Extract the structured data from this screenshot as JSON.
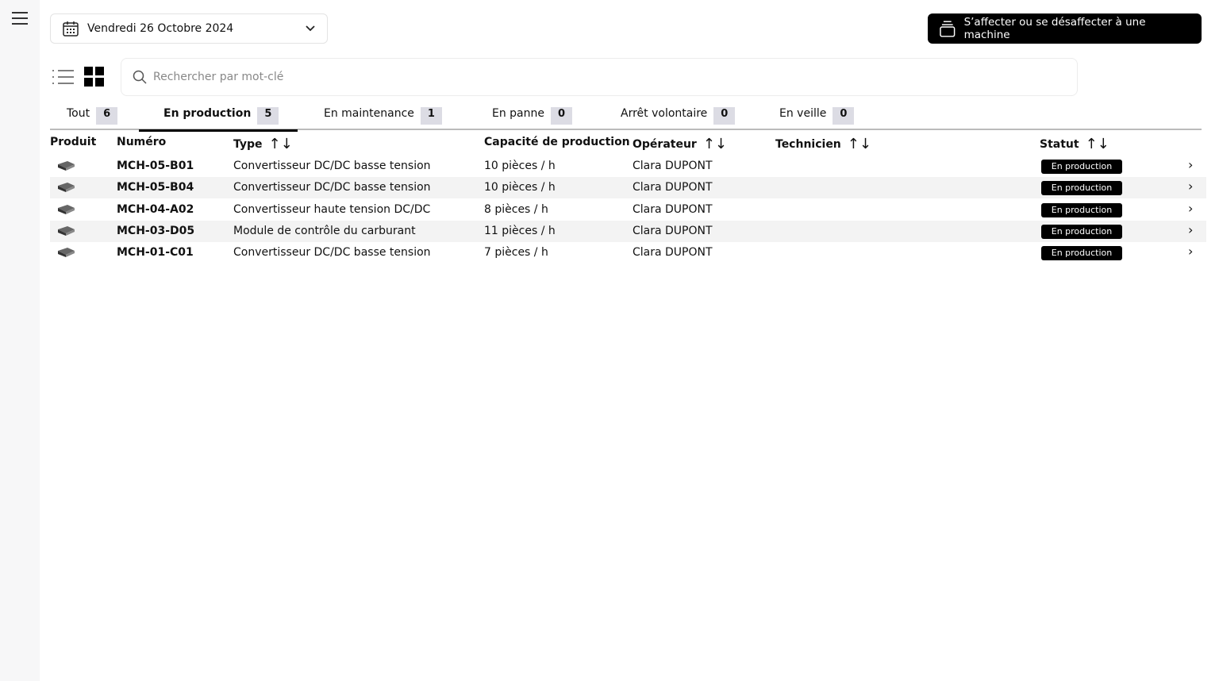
{
  "header": {
    "date": "Vendredi 26 Octobre 2024",
    "assign_button": "S’affecter ou se désaffecter à une machine"
  },
  "search": {
    "placeholder": "Rechercher par mot-clé"
  },
  "tabs": [
    {
      "label": "Tout",
      "count": "6"
    },
    {
      "label": "En production",
      "count": "5",
      "active": true
    },
    {
      "label": "En maintenance",
      "count": "1"
    },
    {
      "label": "En panne",
      "count": "0"
    },
    {
      "label": "Arrêt volontaire",
      "count": "0"
    },
    {
      "label": "En veille",
      "count": "0"
    }
  ],
  "columns": {
    "product": "Produit",
    "number": "Numéro",
    "type": "Type",
    "capacity": "Capacité de production",
    "operator": "Opérateur",
    "technician": "Technicien",
    "status": "Statut"
  },
  "rows": [
    {
      "number": "MCH-05-B01",
      "type": "Convertisseur DC/DC basse tension",
      "capacity": "10 pièces / h",
      "operator": "Clara DUPONT",
      "technician": "",
      "status": "En production"
    },
    {
      "number": "MCH-05-B04",
      "type": "Convertisseur DC/DC basse tension",
      "capacity": "10 pièces / h",
      "operator": "Clara DUPONT",
      "technician": "",
      "status": "En production"
    },
    {
      "number": "MCH-04-A02",
      "type": "Convertisseur haute tension DC/DC",
      "capacity": "8 pièces / h",
      "operator": "Clara DUPONT",
      "technician": "",
      "status": "En production"
    },
    {
      "number": "MCH-03-D05",
      "type": "Module de contrôle du carburant",
      "capacity": "11 pièces / h",
      "operator": "Clara DUPONT",
      "technician": "",
      "status": "En production"
    },
    {
      "number": "MCH-01-C01",
      "type": "Convertisseur DC/DC basse tension",
      "capacity": "7 pièces / h",
      "operator": "Clara DUPONT",
      "technician": "",
      "status": "En production"
    }
  ]
}
